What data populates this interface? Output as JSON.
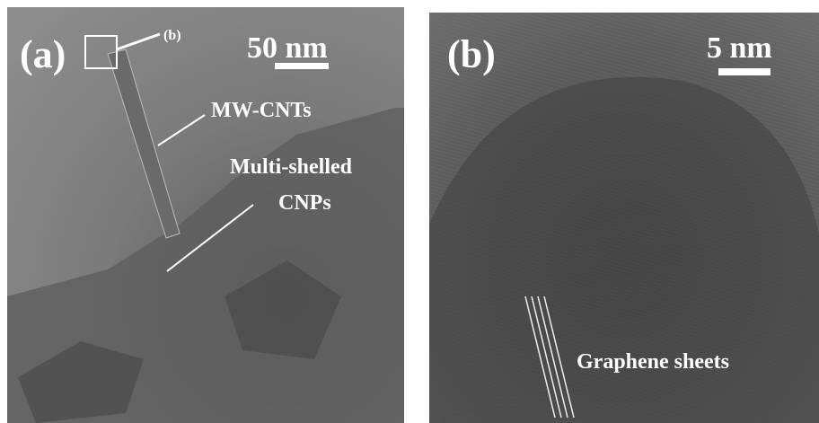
{
  "panels": [
    {
      "label": "(a)",
      "callout": "(b)",
      "scale": "50 nm",
      "annotations": [
        "MW-CNTs",
        "Multi-shelled",
        "CNPs"
      ]
    },
    {
      "label": "(b)",
      "scale": "5 nm",
      "annotations": [
        "Graphene sheets"
      ]
    }
  ]
}
